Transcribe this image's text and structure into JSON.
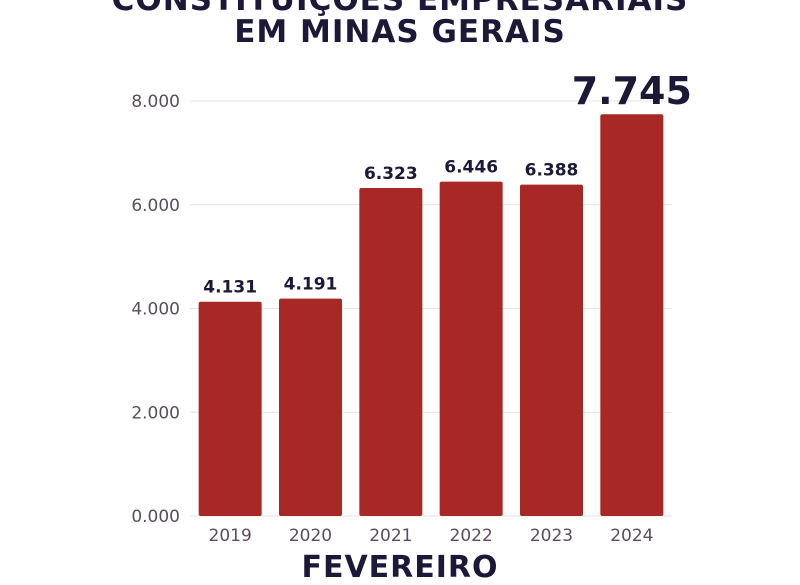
{
  "title_lines": [
    "CONSTITUIÇÕES EMPRESARIAIS",
    "EM MINAS GERAIS"
  ],
  "chart_data": {
    "type": "bar",
    "title": "CONSTITUIÇÕES EMPRESARIAIS EM MINAS GERAIS",
    "xlabel": "FEVEREIRO",
    "ylabel": "",
    "categories": [
      "2019",
      "2020",
      "2021",
      "2022",
      "2023",
      "2024"
    ],
    "values": [
      4131,
      4191,
      6323,
      6446,
      6388,
      7745
    ],
    "data_labels": [
      "4.131",
      "4.191",
      "6.323",
      "6.446",
      "6.388",
      "7.745"
    ],
    "highlight_index": 5,
    "ylim": [
      0,
      8000
    ],
    "yticks": [
      0,
      2000,
      4000,
      6000,
      8000
    ],
    "ytick_labels": [
      "0.000",
      "2.000",
      "4.000",
      "6.000",
      "8.000"
    ],
    "grid": true,
    "bar_color": "#a82826",
    "grid_color": "#e6e3ea",
    "text_color": "#1b1838",
    "tick_color": "#5a4e5c"
  }
}
